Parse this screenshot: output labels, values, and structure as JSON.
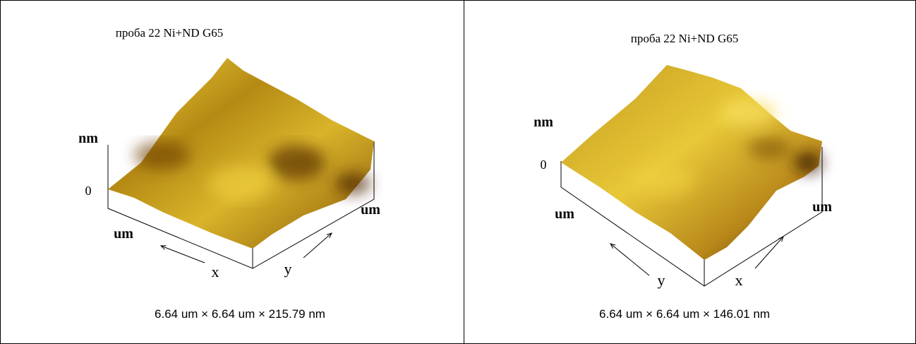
{
  "panels": [
    {
      "title": "проба 22 Ni+ND G65",
      "z_unit": "nm",
      "z_zero": "0",
      "left_unit": "um",
      "right_unit": "um",
      "left_axis": "x",
      "right_axis": "y",
      "caption": "6.64 um × 6.64 um × 215.79 nm"
    },
    {
      "title": "проба 22 Ni+ND G65",
      "z_unit": "nm",
      "z_zero": "0",
      "left_unit": "um",
      "right_unit": "um",
      "left_axis": "y",
      "right_axis": "x",
      "caption": "6.64 um × 6.64 um × 146.01 nm"
    }
  ]
}
